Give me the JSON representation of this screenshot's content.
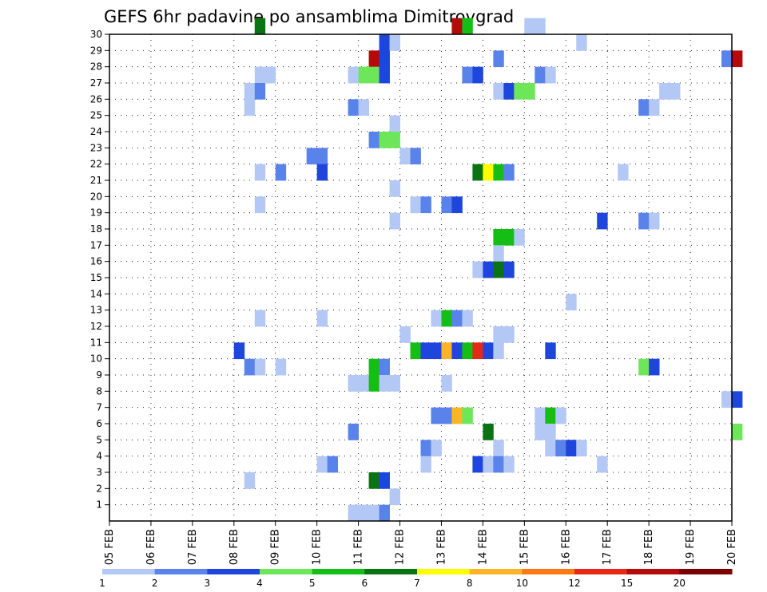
{
  "chart_data": {
    "type": "heatmap",
    "title": "GEFS 6hr padavine po ansamblima Dimitrovgrad",
    "y_ticks": [
      "1",
      "2",
      "3",
      "4",
      "5",
      "6",
      "7",
      "8",
      "9",
      "10",
      "11",
      "12",
      "13",
      "14",
      "15",
      "16",
      "17",
      "18",
      "19",
      "20",
      "21",
      "22",
      "23",
      "24",
      "25",
      "26",
      "27",
      "28",
      "29",
      "30"
    ],
    "x_ticks": [
      "05 FEB",
      "06 FEB",
      "07 FEB",
      "08 FEB",
      "09 FEB",
      "10 FEB",
      "11 FEB",
      "12 FEB",
      "13 FEB",
      "14 FEB",
      "15 FEB",
      "16 FEB",
      "17 FEB",
      "18 FEB",
      "19 FEB",
      "20 FEB"
    ],
    "x_range_days": [
      0,
      15
    ],
    "y_range": [
      0,
      30
    ],
    "grid": true,
    "color_levels": [
      1,
      2,
      3,
      4,
      5,
      6,
      7,
      8,
      10,
      12,
      15,
      20
    ],
    "color_scale": [
      "#b4c8f5",
      "#5a82eb",
      "#1e46dc",
      "#6ee65a",
      "#14be14",
      "#0a7314",
      "#ffff00",
      "#ffb428",
      "#ff7814",
      "#e62814",
      "#b40a0a",
      "#780000"
    ],
    "cells": [
      [
        3.5,
        30,
        5
      ],
      [
        8.25,
        30,
        10
      ],
      [
        8.5,
        30,
        4
      ],
      [
        10.0,
        30,
        0
      ],
      [
        10.25,
        30,
        0
      ],
      [
        6.5,
        29,
        2
      ],
      [
        6.75,
        29,
        0
      ],
      [
        11.25,
        29,
        0
      ],
      [
        6.25,
        28,
        10
      ],
      [
        6.5,
        28,
        2
      ],
      [
        9.25,
        28,
        1
      ],
      [
        14.75,
        28,
        1
      ],
      [
        15.0,
        28,
        10
      ],
      [
        3.5,
        27,
        0
      ],
      [
        3.75,
        27,
        0
      ],
      [
        5.75,
        27,
        0
      ],
      [
        6.0,
        27,
        3
      ],
      [
        6.25,
        27,
        3
      ],
      [
        6.5,
        27,
        2
      ],
      [
        8.5,
        27,
        1
      ],
      [
        8.75,
        27,
        2
      ],
      [
        10.25,
        27,
        1
      ],
      [
        10.5,
        27,
        0
      ],
      [
        3.25,
        26,
        0
      ],
      [
        3.5,
        26,
        1
      ],
      [
        9.25,
        26,
        0
      ],
      [
        9.5,
        26,
        2
      ],
      [
        9.75,
        26,
        3
      ],
      [
        10.0,
        26,
        3
      ],
      [
        13.25,
        26,
        0
      ],
      [
        13.5,
        26,
        0
      ],
      [
        3.25,
        25,
        0
      ],
      [
        5.75,
        25,
        1
      ],
      [
        6.0,
        25,
        0
      ],
      [
        12.75,
        25,
        1
      ],
      [
        13.0,
        25,
        0
      ],
      [
        6.75,
        24,
        0
      ],
      [
        6.25,
        23,
        1
      ],
      [
        6.5,
        23,
        3
      ],
      [
        6.75,
        23,
        3
      ],
      [
        4.75,
        22,
        1
      ],
      [
        5.0,
        22,
        1
      ],
      [
        7.0,
        22,
        0
      ],
      [
        7.25,
        22,
        1
      ],
      [
        3.5,
        21,
        0
      ],
      [
        4.0,
        21,
        1
      ],
      [
        5.0,
        21,
        2
      ],
      [
        8.75,
        21,
        5
      ],
      [
        9.0,
        21,
        6
      ],
      [
        9.25,
        21,
        4
      ],
      [
        9.5,
        21,
        1
      ],
      [
        12.25,
        21,
        0
      ],
      [
        6.75,
        20,
        0
      ],
      [
        3.5,
        19,
        0
      ],
      [
        7.25,
        19,
        0
      ],
      [
        7.5,
        19,
        1
      ],
      [
        8.0,
        19,
        1
      ],
      [
        8.25,
        19,
        2
      ],
      [
        6.75,
        18,
        0
      ],
      [
        11.75,
        18,
        2
      ],
      [
        12.75,
        18,
        1
      ],
      [
        13.0,
        18,
        0
      ],
      [
        9.25,
        17,
        4
      ],
      [
        9.5,
        17,
        4
      ],
      [
        9.75,
        17,
        0
      ],
      [
        9.25,
        16,
        0
      ],
      [
        8.75,
        15,
        0
      ],
      [
        9.0,
        15,
        2
      ],
      [
        9.25,
        15,
        5
      ],
      [
        9.5,
        15,
        2
      ],
      [
        11.0,
        13,
        0
      ],
      [
        3.5,
        12,
        0
      ],
      [
        5.0,
        12,
        0
      ],
      [
        7.75,
        12,
        0
      ],
      [
        8.0,
        12,
        4
      ],
      [
        8.25,
        12,
        1
      ],
      [
        8.5,
        12,
        0
      ],
      [
        7.0,
        11,
        0
      ],
      [
        9.25,
        11,
        0
      ],
      [
        9.5,
        11,
        0
      ],
      [
        3.0,
        10,
        2
      ],
      [
        7.25,
        10,
        4
      ],
      [
        7.5,
        10,
        2
      ],
      [
        7.75,
        10,
        2
      ],
      [
        8.0,
        10,
        7
      ],
      [
        8.25,
        10,
        2
      ],
      [
        8.5,
        10,
        4
      ],
      [
        8.75,
        10,
        9
      ],
      [
        9.0,
        10,
        2
      ],
      [
        9.25,
        10,
        0
      ],
      [
        10.5,
        10,
        2
      ],
      [
        3.25,
        9,
        1
      ],
      [
        3.5,
        9,
        0
      ],
      [
        4.0,
        9,
        0
      ],
      [
        6.25,
        9,
        4
      ],
      [
        6.5,
        9,
        1
      ],
      [
        12.75,
        9,
        3
      ],
      [
        13.0,
        9,
        2
      ],
      [
        5.75,
        8,
        0
      ],
      [
        6.0,
        8,
        0
      ],
      [
        6.25,
        8,
        4
      ],
      [
        6.5,
        8,
        0
      ],
      [
        6.75,
        8,
        0
      ],
      [
        8.0,
        8,
        0
      ],
      [
        14.75,
        7,
        0
      ],
      [
        15.0,
        7,
        2
      ],
      [
        7.75,
        6,
        1
      ],
      [
        8.0,
        6,
        1
      ],
      [
        8.25,
        6,
        7
      ],
      [
        8.5,
        6,
        3
      ],
      [
        10.25,
        6,
        0
      ],
      [
        10.5,
        6,
        4
      ],
      [
        10.75,
        6,
        0
      ],
      [
        5.75,
        5,
        1
      ],
      [
        9.0,
        5,
        5
      ],
      [
        10.25,
        5,
        0
      ],
      [
        10.5,
        5,
        0
      ],
      [
        15.0,
        5,
        3
      ],
      [
        7.5,
        4,
        1
      ],
      [
        7.75,
        4,
        0
      ],
      [
        9.25,
        4,
        0
      ],
      [
        10.5,
        4,
        0
      ],
      [
        10.75,
        4,
        1
      ],
      [
        11.0,
        4,
        2
      ],
      [
        11.25,
        4,
        0
      ],
      [
        5.0,
        3,
        0
      ],
      [
        5.25,
        3,
        1
      ],
      [
        7.5,
        3,
        0
      ],
      [
        8.75,
        3,
        2
      ],
      [
        9.0,
        3,
        0
      ],
      [
        9.25,
        3,
        1
      ],
      [
        9.5,
        3,
        0
      ],
      [
        11.75,
        3,
        0
      ],
      [
        3.25,
        2,
        0
      ],
      [
        6.25,
        2,
        5
      ],
      [
        6.5,
        2,
        2
      ],
      [
        6.75,
        1,
        0
      ],
      [
        5.75,
        0,
        0
      ],
      [
        6.0,
        0,
        0
      ],
      [
        6.25,
        0,
        0
      ],
      [
        6.5,
        0,
        1
      ]
    ]
  }
}
